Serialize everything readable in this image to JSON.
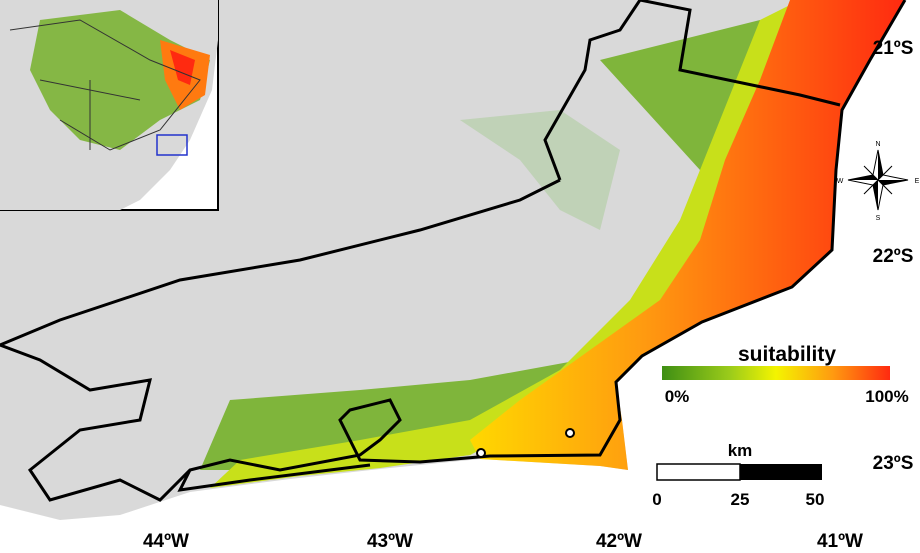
{
  "map": {
    "latitude_labels": [
      "21ºS",
      "22ºS",
      "23ºS"
    ],
    "longitude_labels": [
      "44ºW",
      "43ºW",
      "42ºW",
      "41ºW"
    ],
    "compass": {
      "north": "N",
      "east": "E",
      "south": "S",
      "west": "W"
    },
    "legend": {
      "title": "suitability",
      "min_label": "0%",
      "max_label": "100%"
    },
    "scale_bar": {
      "unit": "km",
      "labels": [
        "0",
        "25",
        "50"
      ]
    }
  }
}
